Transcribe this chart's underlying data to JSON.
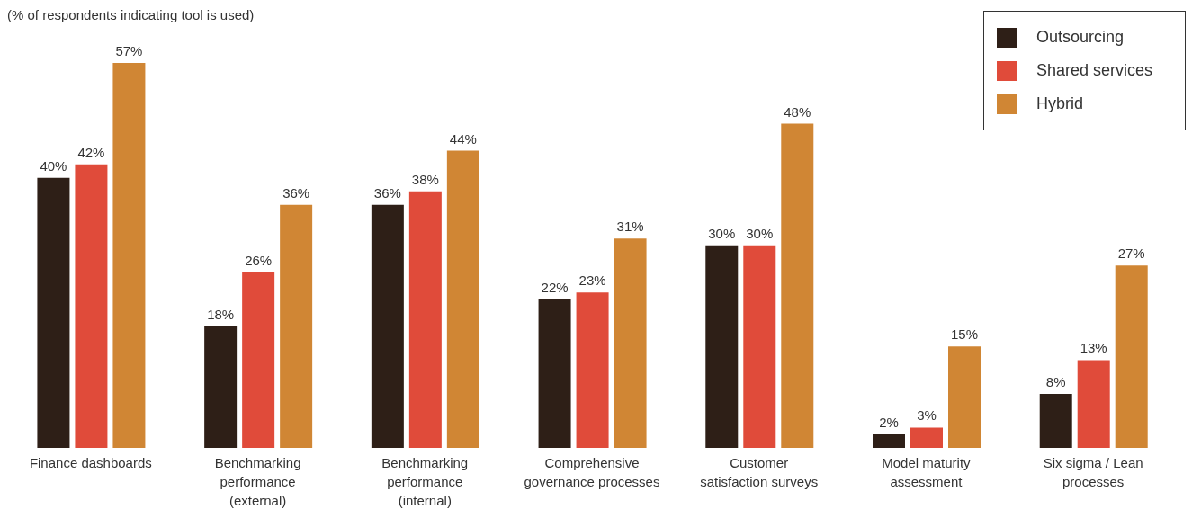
{
  "chart_data": {
    "type": "bar",
    "subtitle": "(% of respondents indicating tool is used)",
    "categories": [
      "Finance dashboards",
      "Benchmarking performance (external)",
      "Benchmarking performance (internal)",
      "Comprehensive governance processes",
      "Customer satisfaction surveys",
      "Model maturity assessment",
      "Six sigma / Lean processes"
    ],
    "series": [
      {
        "name": "Outsourcing",
        "color": "#2e1f17",
        "values": [
          40,
          18,
          36,
          22,
          30,
          2,
          8
        ],
        "value_labels": [
          "40%",
          "18%",
          "36%",
          "22%",
          "30%",
          "2%",
          "8%"
        ]
      },
      {
        "name": "Shared services",
        "color": "#e04b3a",
        "values": [
          42,
          26,
          38,
          23,
          30,
          3,
          13
        ],
        "value_labels": [
          "42%",
          "26%",
          "38%",
          "23%",
          "30%",
          "3%",
          "13%"
        ]
      },
      {
        "name": "Hybrid",
        "color": "#d08634",
        "values": [
          57,
          36,
          44,
          31,
          48,
          15,
          27
        ],
        "value_labels": [
          "57%",
          "36%",
          "44%",
          "31%",
          "48%",
          "15%",
          "27%"
        ]
      }
    ],
    "legend": "top right",
    "grid": false
  }
}
